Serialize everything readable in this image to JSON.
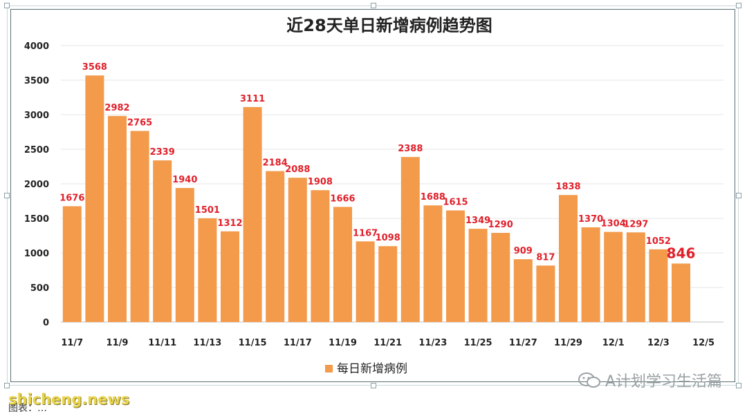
{
  "chart_data": {
    "type": "bar",
    "title": "近28天单日新增病例趋势图",
    "categories": [
      "11/7",
      "11/8",
      "11/9",
      "11/10",
      "11/11",
      "11/12",
      "11/13",
      "11/14",
      "11/15",
      "11/16",
      "11/17",
      "11/18",
      "11/19",
      "11/20",
      "11/21",
      "11/22",
      "11/23",
      "11/24",
      "11/25",
      "11/26",
      "11/27",
      "11/28",
      "11/29",
      "11/30",
      "12/1",
      "12/2",
      "12/3",
      "12/4"
    ],
    "x_tick_labels": [
      "11/7",
      "11/9",
      "11/11",
      "11/13",
      "11/15",
      "11/17",
      "11/19",
      "11/21",
      "11/23",
      "11/25",
      "11/27",
      "11/29",
      "12/1",
      "12/3",
      "12/5"
    ],
    "series": [
      {
        "name": "每日新增病例",
        "values": [
          1676,
          3568,
          2982,
          2765,
          2339,
          1940,
          1501,
          1312,
          3111,
          2184,
          2088,
          1908,
          1666,
          1167,
          1098,
          2388,
          1688,
          1615,
          1349,
          1290,
          909,
          817,
          1838,
          1370,
          1304,
          1297,
          1052,
          846
        ]
      }
    ],
    "ylim": [
      0,
      4000
    ],
    "y_ticks": [
      0,
      500,
      1000,
      1500,
      2000,
      2500,
      3000,
      3500,
      4000
    ],
    "grid": true,
    "legend_position": "bottom",
    "highlight_last": true
  },
  "colors": {
    "bar": "#f39a4b",
    "label": "#e0202a",
    "grid": "#e6e6e6",
    "axis": "#bfbfbf",
    "text": "#222222"
  },
  "watermark": {
    "text": "A计划学习生活篇",
    "icon": "wechat-icon"
  },
  "site_label": "shicheng.news",
  "source_label": "图表：…"
}
